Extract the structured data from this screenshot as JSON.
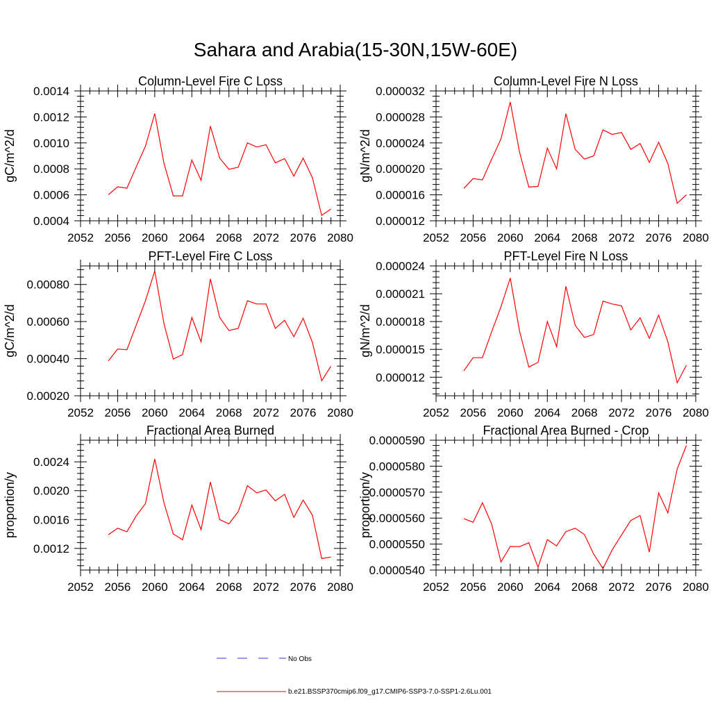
{
  "title": "Sahara and Arabia(15-30N,15W-60E)",
  "chart_data": [
    {
      "type": "line",
      "title": "Column-Level Fire C Loss",
      "ylabel": "gC/m^2/d",
      "xlim": [
        2052,
        2080
      ],
      "ylim": [
        0.0004,
        0.0014
      ],
      "xticks": [
        "2052",
        "2056",
        "2060",
        "2064",
        "2068",
        "2072",
        "2076",
        "2080"
      ],
      "yticks": [
        "0.0004",
        "0.0006",
        "0.0008",
        "0.0010",
        "0.0012",
        "0.0014"
      ],
      "yticks_num": [
        0.0004,
        0.0006,
        0.0008,
        0.001,
        0.0012,
        0.0014
      ],
      "x": [
        2055,
        2056,
        2057,
        2058,
        2059,
        2060,
        2061,
        2062,
        2063,
        2064,
        2065,
        2066,
        2067,
        2068,
        2069,
        2070,
        2071,
        2072,
        2073,
        2074,
        2075,
        2076,
        2077,
        2078,
        2079
      ],
      "series": [
        {
          "name": "b.e21.BSSP370cmip6.f09_g17.CMIP6-SSP3-7.0-SSP1-2.6Lu.001",
          "values": [
            0.000601,
            0.000662,
            0.000651,
            0.000814,
            0.000975,
            0.001226,
            0.000842,
            0.000592,
            0.000592,
            0.000868,
            0.000712,
            0.001129,
            0.000883,
            0.000797,
            0.000813,
            0.001,
            0.000968,
            0.000986,
            0.000846,
            0.000879,
            0.000744,
            0.000883,
            0.000732,
            0.000441,
            0.000491
          ]
        }
      ]
    },
    {
      "type": "line",
      "title": "Column-Level Fire N Loss",
      "ylabel": "gN/m^2/d",
      "xlim": [
        2052,
        2080
      ],
      "ylim": [
        1.2e-05,
        3.2e-05
      ],
      "xticks": [
        "2052",
        "2056",
        "2060",
        "2064",
        "2068",
        "2072",
        "2076",
        "2080"
      ],
      "yticks": [
        "0.000012",
        "0.000016",
        "0.000020",
        "0.000024",
        "0.000028",
        "0.000032"
      ],
      "yticks_num": [
        1.2e-05,
        1.6e-05,
        2e-05,
        2.4e-05,
        2.8e-05,
        3.2e-05
      ],
      "x": [
        2055,
        2056,
        2057,
        2058,
        2059,
        2060,
        2061,
        2062,
        2063,
        2064,
        2065,
        2066,
        2067,
        2068,
        2069,
        2070,
        2071,
        2072,
        2073,
        2074,
        2075,
        2076,
        2077,
        2078,
        2079
      ],
      "series": [
        {
          "name": "b.e21.BSSP370cmip6.f09_g17.CMIP6-SSP3-7.0-SSP1-2.6Lu.001",
          "values": [
            1.7e-05,
            1.85e-05,
            1.83e-05,
            2.15e-05,
            2.46e-05,
            3.03e-05,
            2.26e-05,
            1.72e-05,
            1.73e-05,
            2.32e-05,
            2e-05,
            2.85e-05,
            2.3e-05,
            2.15e-05,
            2.2e-05,
            2.6e-05,
            2.53e-05,
            2.56e-05,
            2.3e-05,
            2.39e-05,
            2.1e-05,
            2.41e-05,
            2.08e-05,
            1.47e-05,
            1.6e-05
          ]
        }
      ]
    },
    {
      "type": "line",
      "title": "PFT-Level Fire C Loss",
      "ylabel": "gC/m^2/d",
      "xlim": [
        2052,
        2080
      ],
      "ylim": [
        0.0002,
        0.0009
      ],
      "xticks": [
        "2052",
        "2056",
        "2060",
        "2064",
        "2068",
        "2072",
        "2076",
        "2080"
      ],
      "yticks": [
        "0.00020",
        "0.00040",
        "0.00060",
        "0.00080"
      ],
      "yticks_num": [
        0.0002,
        0.0004,
        0.0006,
        0.0008
      ],
      "x": [
        2055,
        2056,
        2057,
        2058,
        2059,
        2060,
        2061,
        2062,
        2063,
        2064,
        2065,
        2066,
        2067,
        2068,
        2069,
        2070,
        2071,
        2072,
        2073,
        2074,
        2075,
        2076,
        2077,
        2078,
        2079
      ],
      "series": [
        {
          "name": "b.e21.BSSP370cmip6.f09_g17.CMIP6-SSP3-7.0-SSP1-2.6Lu.001",
          "values": [
            0.000388,
            0.000452,
            0.000448,
            0.00058,
            0.000712,
            0.000873,
            0.000588,
            0.000398,
            0.000422,
            0.000622,
            0.00049,
            0.00083,
            0.000622,
            0.000552,
            0.000563,
            0.000712,
            0.000695,
            0.000695,
            0.000563,
            0.000607,
            0.000518,
            0.000618,
            0.000488,
            0.000281,
            0.000359
          ]
        }
      ]
    },
    {
      "type": "line",
      "title": "PFT-Level Fire N Loss",
      "ylabel": "gN/m^2/d",
      "xlim": [
        2052,
        2080
      ],
      "ylim": [
        1e-05,
        2.4e-05
      ],
      "xticks": [
        "2052",
        "2056",
        "2060",
        "2064",
        "2068",
        "2072",
        "2076",
        "2080"
      ],
      "yticks": [
        "0.000012",
        "0.000015",
        "0.000018",
        "0.000021",
        "0.000024"
      ],
      "yticks_num": [
        1.2e-05,
        1.5e-05,
        1.8e-05,
        2.1e-05,
        2.4e-05
      ],
      "x": [
        2055,
        2056,
        2057,
        2058,
        2059,
        2060,
        2061,
        2062,
        2063,
        2064,
        2065,
        2066,
        2067,
        2068,
        2069,
        2070,
        2071,
        2072,
        2073,
        2074,
        2075,
        2076,
        2077,
        2078,
        2079
      ],
      "series": [
        {
          "name": "b.e21.BSSP370cmip6.f09_g17.CMIP6-SSP3-7.0-SSP1-2.6Lu.001",
          "values": [
            1.27e-05,
            1.41e-05,
            1.41e-05,
            1.69e-05,
            1.96e-05,
            2.27e-05,
            1.7e-05,
            1.31e-05,
            1.36e-05,
            1.8e-05,
            1.53e-05,
            2.18e-05,
            1.76e-05,
            1.63e-05,
            1.66e-05,
            2.02e-05,
            1.99e-05,
            1.97e-05,
            1.71e-05,
            1.84e-05,
            1.62e-05,
            1.87e-05,
            1.58e-05,
            1.14e-05,
            1.33e-05
          ]
        }
      ]
    },
    {
      "type": "line",
      "title": "Fractional Area Burned",
      "ylabel": "proportion/y",
      "xlim": [
        2052,
        2080
      ],
      "ylim": [
        0.0009,
        0.0027
      ],
      "xticks": [
        "2052",
        "2056",
        "2060",
        "2064",
        "2068",
        "2072",
        "2076",
        "2080"
      ],
      "yticks": [
        "0.0012",
        "0.0016",
        "0.0020",
        "0.0024"
      ],
      "yticks_num": [
        0.0012,
        0.0016,
        0.002,
        0.0024
      ],
      "x": [
        2055,
        2056,
        2057,
        2058,
        2059,
        2060,
        2061,
        2062,
        2063,
        2064,
        2065,
        2066,
        2067,
        2068,
        2069,
        2070,
        2071,
        2072,
        2073,
        2074,
        2075,
        2076,
        2077,
        2078,
        2079
      ],
      "series": [
        {
          "name": "b.e21.BSSP370cmip6.f09_g17.CMIP6-SSP3-7.0-SSP1-2.6Lu.001",
          "values": [
            0.00139,
            0.00148,
            0.00143,
            0.00165,
            0.00182,
            0.00244,
            0.00183,
            0.0014,
            0.00132,
            0.0018,
            0.00146,
            0.00212,
            0.0016,
            0.00154,
            0.00171,
            0.00207,
            0.00197,
            0.00201,
            0.00186,
            0.00195,
            0.00163,
            0.00187,
            0.00166,
            0.00106,
            0.00108
          ]
        }
      ]
    },
    {
      "type": "line",
      "title": "Fractional Area Burned - Crop",
      "ylabel": "proportion/y",
      "xlim": [
        2052,
        2080
      ],
      "ylim": [
        5.4e-05,
        5.9e-05
      ],
      "xticks": [
        "2052",
        "2056",
        "2060",
        "2064",
        "2068",
        "2072",
        "2076",
        "2080"
      ],
      "yticks": [
        "0.0000540",
        "0.0000550",
        "0.0000560",
        "0.0000570",
        "0.0000580",
        "0.0000590"
      ],
      "yticks_num": [
        5.4e-05,
        5.5e-05,
        5.6e-05,
        5.7e-05,
        5.8e-05,
        5.9e-05
      ],
      "x": [
        2055,
        2056,
        2057,
        2058,
        2059,
        2060,
        2061,
        2062,
        2063,
        2064,
        2065,
        2066,
        2067,
        2068,
        2069,
        2070,
        2071,
        2072,
        2073,
        2074,
        2075,
        2076,
        2077,
        2078,
        2079
      ],
      "series": [
        {
          "name": "b.e21.BSSP370cmip6.f09_g17.CMIP6-SSP3-7.0-SSP1-2.6Lu.001",
          "values": [
            5.598e-05,
            5.584e-05,
            5.659e-05,
            5.577e-05,
            5.431e-05,
            5.491e-05,
            5.49e-05,
            5.505e-05,
            5.411e-05,
            5.517e-05,
            5.493e-05,
            5.548e-05,
            5.561e-05,
            5.537e-05,
            5.461e-05,
            5.406e-05,
            5.478e-05,
            5.535e-05,
            5.591e-05,
            5.61e-05,
            5.469e-05,
            5.697e-05,
            5.62e-05,
            5.789e-05,
            5.88e-05
          ]
        }
      ]
    }
  ],
  "legend": {
    "items": [
      {
        "label": "No Obs",
        "color": "#3333cc",
        "style": "dashed"
      },
      {
        "label": "b.e21.BSSP370cmip6.f09_g17.CMIP6-SSP3-7.0-SSP1-2.6Lu.001",
        "color": "#ff0000",
        "style": "solid"
      }
    ]
  },
  "colors": {
    "series": "#ff0000",
    "axis": "#000000"
  }
}
